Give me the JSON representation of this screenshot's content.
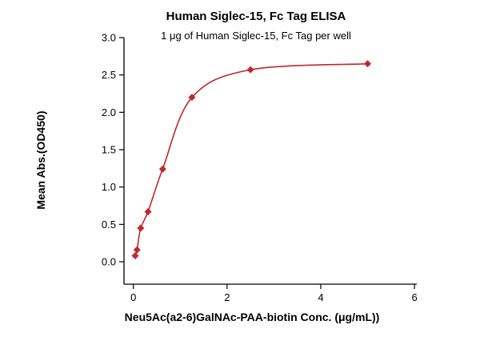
{
  "chart_data": {
    "type": "scatter",
    "title": "Human Siglec-15, Fc Tag ELISA",
    "subtitle": "1 μg of Human Siglec-15, Fc Tag per well",
    "xlabel": "Neu5Ac(a2-6)GalNAc-PAA-biotin Conc. (μg/mL))",
    "ylabel": "Mean Abs.(OD450)",
    "xlim": [
      -0.2,
      6.05
    ],
    "ylim": [
      -0.3,
      3.0
    ],
    "x_ticks": [
      0,
      2,
      4,
      6
    ],
    "y_ticks": [
      0.0,
      0.5,
      1.0,
      1.5,
      2.0,
      2.5,
      3.0
    ],
    "grid": false,
    "legend": "none",
    "line_color": "#c1272d",
    "marker_color": "#c1272d",
    "marker": "diamond",
    "series": [
      {
        "name": "Human Siglec-15, Fc Tag",
        "x": [
          0.039,
          0.078,
          0.156,
          0.313,
          0.625,
          1.25,
          2.5,
          5.0
        ],
        "y": [
          0.08,
          0.16,
          0.45,
          0.67,
          1.24,
          2.2,
          2.57,
          2.65
        ]
      }
    ]
  }
}
